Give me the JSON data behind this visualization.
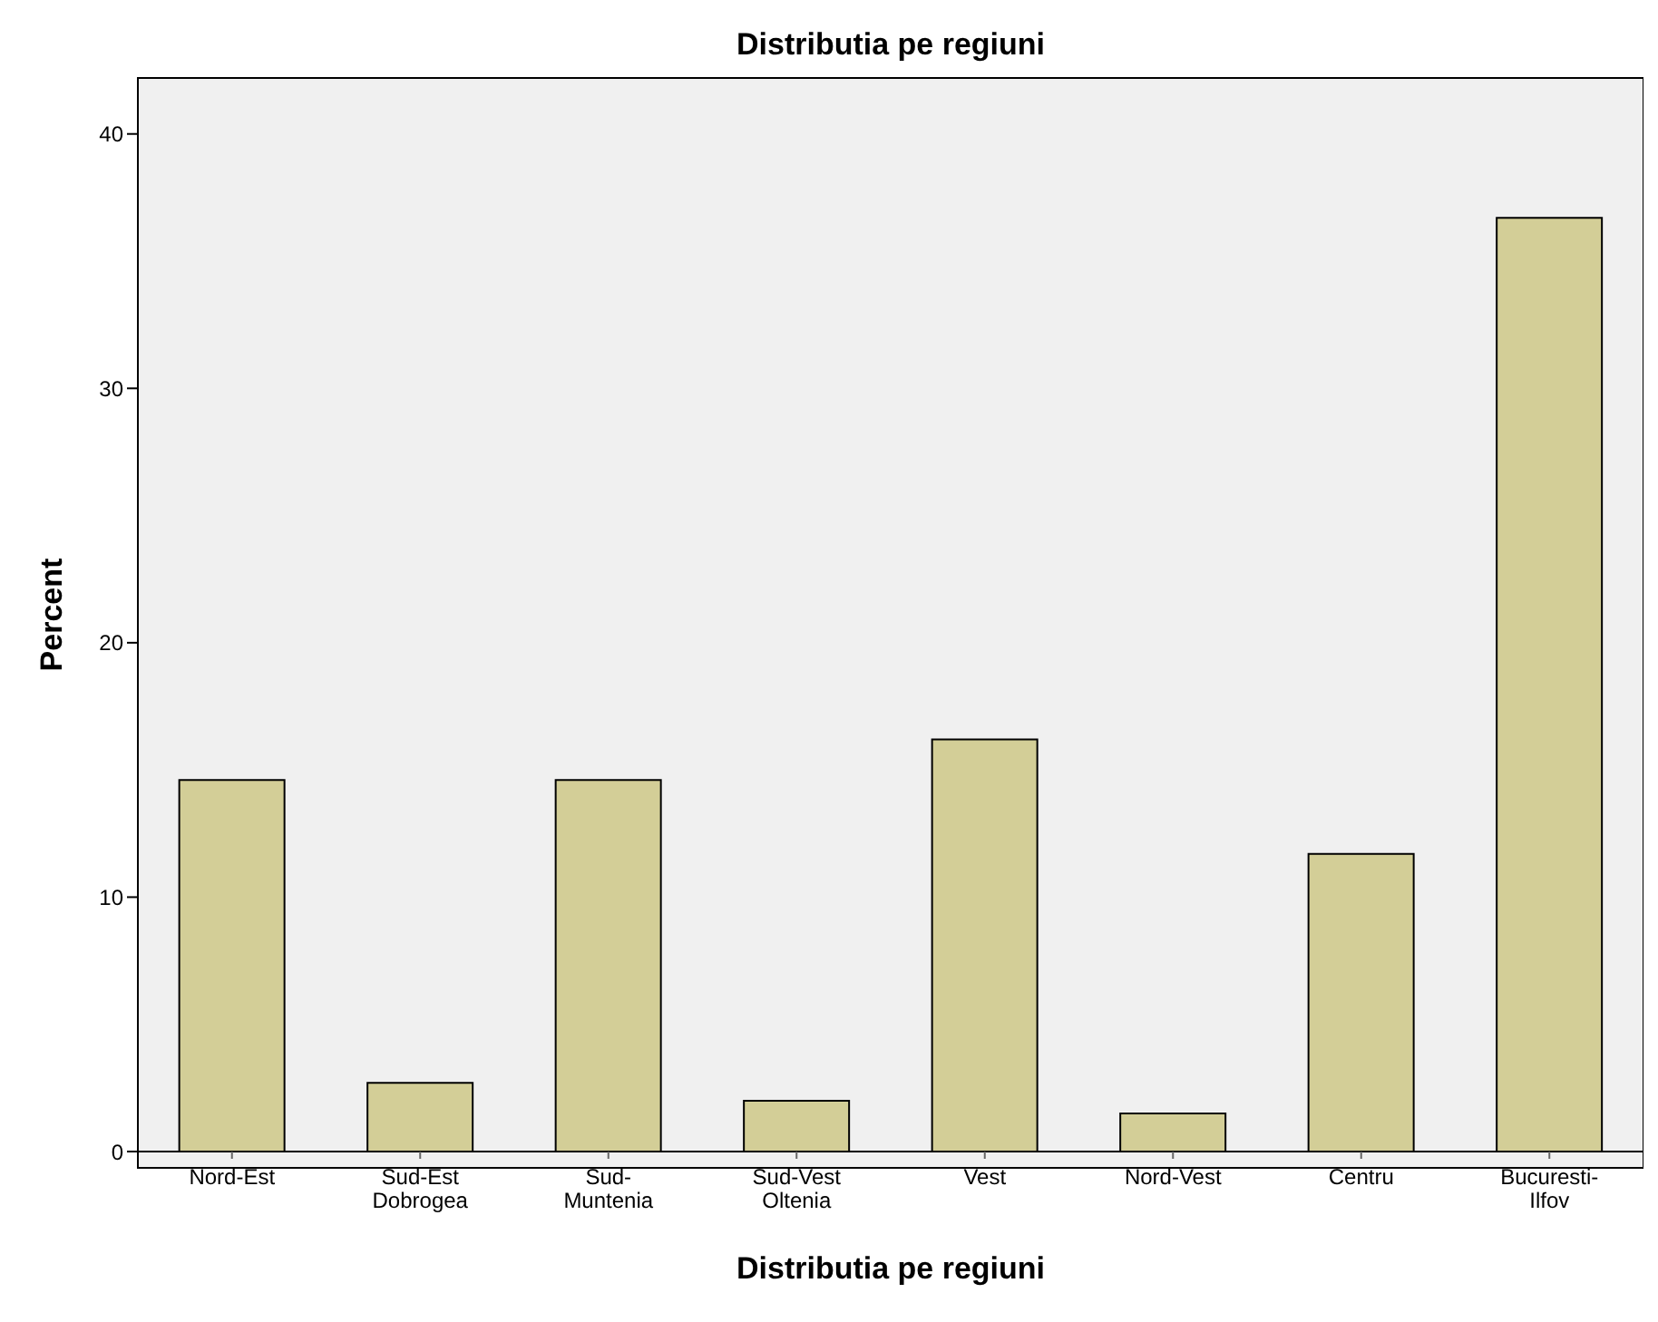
{
  "chart_data": {
    "type": "bar",
    "title": "Distributia pe regiuni",
    "xlabel": "Distributia pe regiuni",
    "ylabel": "Percent",
    "categories": [
      "Nord-Est",
      "Sud-Est Dobrogea",
      "Sud-Muntenia",
      "Sud-Vest Oltenia",
      "Vest",
      "Nord-Vest",
      "Centru",
      "Bucuresti-Ilfov"
    ],
    "values": [
      14.6,
      2.7,
      14.6,
      2.0,
      16.2,
      1.5,
      11.7,
      36.7
    ],
    "color": "#d3ce97",
    "ylim": [
      0,
      42.2
    ],
    "yticks": [
      0,
      10,
      20,
      30,
      40
    ]
  }
}
